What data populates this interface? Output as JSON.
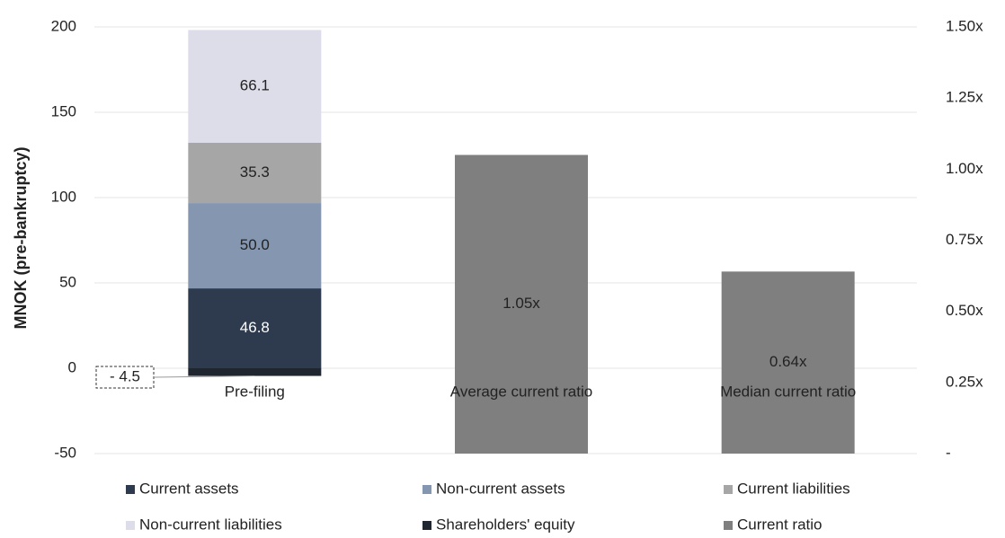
{
  "chart_data": {
    "type": "bar",
    "stacked": true,
    "y_axis_label": "MNOK (pre-bankruptcy)",
    "categories": [
      "Pre-filing",
      "Average current ratio",
      "Median current ratio"
    ],
    "series": [
      {
        "name": "Current assets",
        "color": "#2e3a4d",
        "values": [
          46.8,
          null,
          null
        ]
      },
      {
        "name": "Non-current assets",
        "color": "#8496b0",
        "values": [
          50.0,
          null,
          null
        ],
        "value_labels": [
          "50.0",
          null,
          null
        ]
      },
      {
        "name": "Current liabilities",
        "color": "#a6a6a6",
        "values": [
          35.3,
          null,
          null
        ]
      },
      {
        "name": "Non-current liabilities",
        "color": "#dcdde8",
        "values": [
          66.1,
          null,
          null
        ]
      },
      {
        "name": "Shareholders' equity",
        "color": "#1f2630",
        "values": [
          -4.5,
          null,
          null
        ],
        "value_labels": [
          "- 4.5",
          null,
          null
        ]
      },
      {
        "name": "Current ratio",
        "color": "#7f7f7f",
        "axis": "y2",
        "values": [
          null,
          1.05,
          0.64
        ],
        "value_labels": [
          null,
          "1.05x",
          "0.64x"
        ]
      }
    ],
    "ylim": [
      -50,
      200
    ],
    "yticks": [
      -50,
      0,
      50,
      100,
      150,
      200
    ],
    "y2lim": [
      0,
      1.5
    ],
    "y2ticks": [
      {
        "value": 0,
        "label": "-"
      },
      {
        "value": 0.25,
        "label": "0.25x"
      },
      {
        "value": 0.5,
        "label": "0.50x"
      },
      {
        "value": 0.75,
        "label": "0.75x"
      },
      {
        "value": 1.0,
        "label": "1.00x"
      },
      {
        "value": 1.25,
        "label": "1.25x"
      },
      {
        "value": 1.5,
        "label": "1.50x"
      }
    ],
    "grid": true,
    "legend": "bottom"
  }
}
